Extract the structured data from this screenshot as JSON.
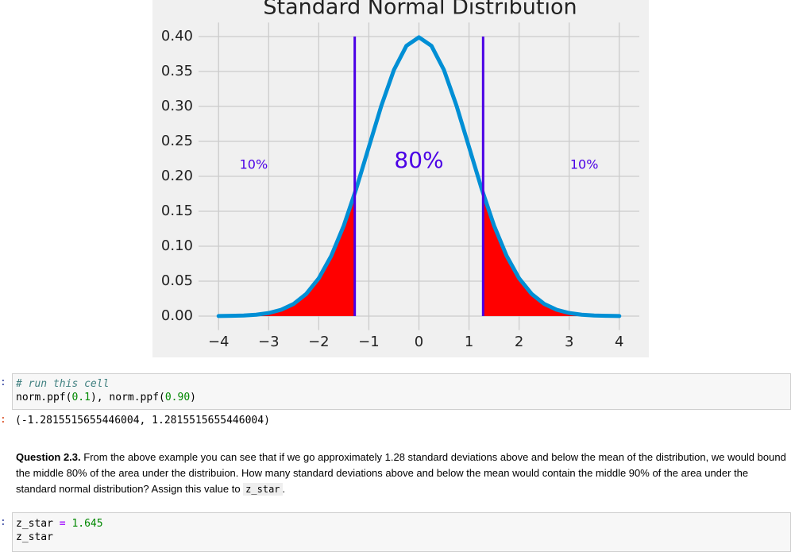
{
  "chart_data": {
    "type": "line",
    "title": "Standard Normal Distribution",
    "x": [
      -4,
      -3.75,
      -3.5,
      -3.25,
      -3,
      -2.75,
      -2.5,
      -2.25,
      -2,
      -1.75,
      -1.5,
      -1.25,
      -1,
      -0.75,
      -0.5,
      -0.25,
      0,
      0.25,
      0.5,
      0.75,
      1,
      1.25,
      1.5,
      1.75,
      2,
      2.25,
      2.5,
      2.75,
      3,
      3.25,
      3.5,
      3.75,
      4
    ],
    "series": [
      {
        "color": "#008fd5",
        "values": [
          0.0001,
          0.0004,
          0.0009,
          0.002,
          0.0044,
          0.0091,
          0.0175,
          0.0317,
          0.054,
          0.0863,
          0.1295,
          0.1826,
          0.242,
          0.3011,
          0.3521,
          0.3867,
          0.3989,
          0.3867,
          0.3521,
          0.3011,
          0.242,
          0.1826,
          0.1295,
          0.0863,
          0.054,
          0.0317,
          0.0175,
          0.0091,
          0.0044,
          0.002,
          0.0009,
          0.0004,
          0.0001
        ]
      }
    ],
    "cutoff_lines": [
      {
        "x": -1.2816,
        "y": [
          0,
          0.4
        ]
      },
      {
        "x": 1.2816,
        "y": [
          0,
          0.4
        ]
      }
    ],
    "cutoff_color": "#4b00e6",
    "fill_color": "#ff0000",
    "annotations": [
      "10%",
      "80%",
      "10%"
    ],
    "xlim": [
      -4.4,
      4.4
    ],
    "xticks": [
      {
        "value": -4,
        "label": "−4"
      },
      {
        "value": -3,
        "label": "−3"
      },
      {
        "value": -2,
        "label": "−2"
      },
      {
        "value": -1,
        "label": "−1"
      },
      0,
      1,
      2,
      3,
      4
    ],
    "ylim": [
      -0.02,
      0.42
    ],
    "yticks": [
      {
        "value": 0,
        "label": "0.00"
      },
      {
        "value": 0.05,
        "label": "0.05"
      },
      {
        "value": 0.1,
        "label": "0.10"
      },
      {
        "value": 0.15,
        "label": "0.15"
      },
      {
        "value": 0.2,
        "label": "0.20"
      },
      {
        "value": 0.25,
        "label": "0.25"
      },
      {
        "value": 0.3,
        "label": "0.30"
      },
      {
        "value": 0.35,
        "label": "0.35"
      },
      {
        "value": 0.4,
        "label": "0.40"
      }
    ],
    "grid": true
  },
  "cells": [
    {
      "prompt": ":",
      "lines": [
        [
          "# run this cell"
        ],
        [
          "norm.ppf(",
          "0.1",
          "), norm.ppf(",
          "0.90",
          ")"
        ]
      ]
    },
    {
      "prompt": ":",
      "output": "(-1.2815515655446004, 1.2815515655446004)"
    },
    {
      "bold": "Question 2.3.",
      "text": " From the above example you can see that if we go approximately 1.28 standard deviations above and below the mean of the distribution, we would bound the middle 80% of the area under the distribuion. How many standard deviations above and below the mean would contain the middle 90% of the area under the standard normal distribution? Assign this value to ",
      "code": "z_star",
      "end": "."
    },
    {
      "prompt": ":",
      "lines": [
        [
          "z_star ",
          "=",
          " 1.645"
        ],
        [
          "z_star"
        ]
      ]
    }
  ]
}
